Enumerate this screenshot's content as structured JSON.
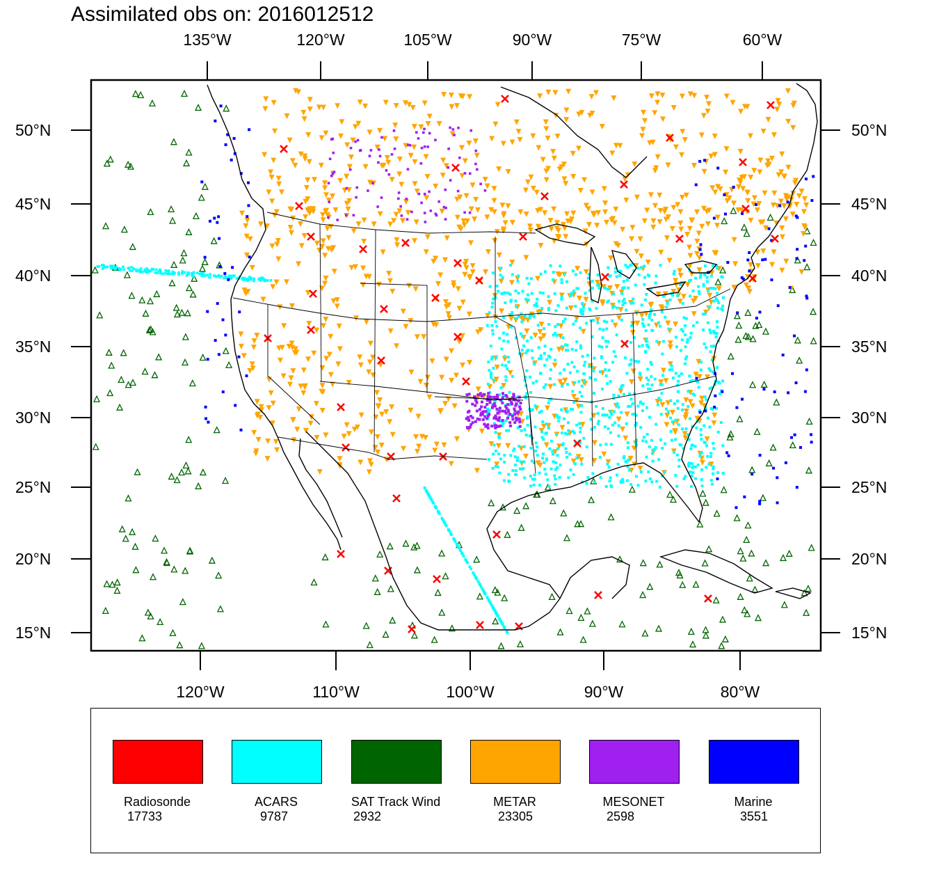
{
  "title": "Assimilated obs on: 2016012512",
  "axes": {
    "top_lon": [
      "135°W",
      "120°W",
      "105°W",
      "90°W",
      "75°W",
      "60°W"
    ],
    "bottom_lon": [
      "120°W",
      "110°W",
      "100°W",
      "90°W",
      "80°W"
    ],
    "left_lat": [
      "50°N",
      "45°N",
      "40°N",
      "35°N",
      "30°N",
      "25°N",
      "20°N",
      "15°N"
    ],
    "right_lat": [
      "50°N",
      "45°N",
      "40°N",
      "35°N",
      "30°N",
      "25°N",
      "20°N",
      "15°N"
    ]
  },
  "colors": {
    "radiosonde": "#ff0000",
    "acars": "#00ffff",
    "sat_track_wind": "#006400",
    "metar": "#ffa500",
    "mesonet": "#a020f0",
    "marine": "#0000ff",
    "coastline": "#000000"
  },
  "legend": [
    {
      "name": "Radiosonde",
      "count": "17733",
      "color": "#ff0000"
    },
    {
      "name": "ACARS",
      "count": "9787",
      "color": "#00ffff"
    },
    {
      "name": "SAT Track Wind",
      "count": "2932",
      "color": "#006400"
    },
    {
      "name": "METAR",
      "count": "23305",
      "color": "#ffa500"
    },
    {
      "name": "MESONET",
      "count": "2598",
      "color": "#a020f0"
    },
    {
      "name": "Marine",
      "count": "3551",
      "color": "#0000ff"
    }
  ]
}
